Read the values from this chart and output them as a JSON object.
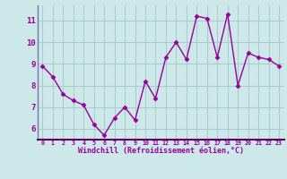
{
  "x": [
    0,
    1,
    2,
    3,
    4,
    5,
    6,
    7,
    8,
    9,
    10,
    11,
    12,
    13,
    14,
    15,
    16,
    17,
    18,
    19,
    20,
    21,
    22,
    23
  ],
  "y": [
    8.9,
    8.4,
    7.6,
    7.3,
    7.1,
    6.2,
    5.7,
    6.5,
    7.0,
    6.4,
    8.2,
    7.4,
    9.3,
    10.0,
    9.2,
    11.2,
    11.1,
    9.3,
    11.3,
    8.0,
    9.5,
    9.3,
    9.2,
    8.9
  ],
  "line_color": "#990099",
  "marker": "D",
  "markersize": 2.5,
  "linewidth": 1.0,
  "bg_color": "#cce8e8",
  "grid_color": "#aacccc",
  "xlabel": "Windchill (Refroidissement éolien,°C)",
  "xlabel_color": "#990099",
  "tick_color": "#990099",
  "ylim": [
    5.5,
    11.7
  ],
  "yticks": [
    6,
    7,
    8,
    9,
    10,
    11
  ],
  "xticks": [
    0,
    1,
    2,
    3,
    4,
    5,
    6,
    7,
    8,
    9,
    10,
    11,
    12,
    13,
    14,
    15,
    16,
    17,
    18,
    19,
    20,
    21,
    22,
    23
  ],
  "spine_color": "#7777aa",
  "bottom_spine_color": "#660066"
}
